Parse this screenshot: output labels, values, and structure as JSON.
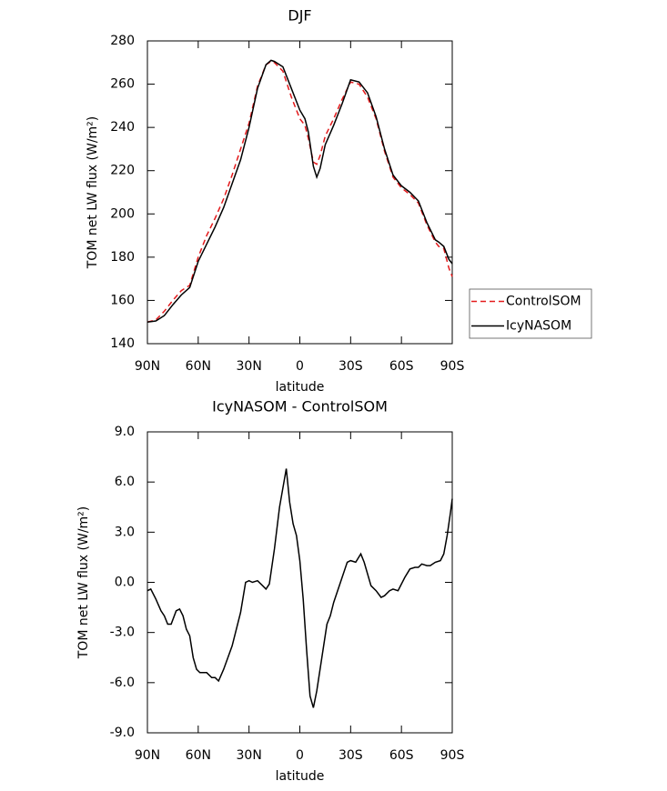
{
  "chart_data": [
    {
      "type": "line",
      "title": "DJF",
      "x_label": "latitude",
      "y_label": "TOM net LW flux (W/m²)",
      "xlim": [
        90,
        -90
      ],
      "xticks": [
        {
          "value": 90,
          "label": "90N"
        },
        {
          "value": 60,
          "label": "60N"
        },
        {
          "value": 30,
          "label": "30N"
        },
        {
          "value": 0,
          "label": "0"
        },
        {
          "value": -30,
          "label": "30S"
        },
        {
          "value": -60,
          "label": "60S"
        },
        {
          "value": -90,
          "label": "90S"
        }
      ],
      "ylim": [
        140,
        280
      ],
      "yticks": [
        140,
        160,
        180,
        200,
        220,
        240,
        260,
        280
      ],
      "legend": "right",
      "x": [
        90,
        85,
        80,
        75,
        70,
        65,
        60,
        55,
        50,
        45,
        40,
        35,
        30,
        25,
        20,
        17,
        15,
        10,
        5,
        0,
        -3,
        -5,
        -8,
        -10,
        -12,
        -15,
        -20,
        -25,
        -30,
        -35,
        -40,
        -45,
        -50,
        -55,
        -60,
        -65,
        -70,
        -75,
        -80,
        -82,
        -85,
        -88,
        -90
      ],
      "series": [
        {
          "name": "ControlSOM",
          "color": "#e41a1c",
          "dashed": true,
          "values": [
            150,
            151,
            155,
            160,
            164.5,
            167,
            180,
            190,
            198,
            207,
            218,
            230,
            242,
            259,
            269,
            270.5,
            270,
            266,
            254,
            244,
            241,
            235,
            224,
            223,
            227,
            236,
            244,
            253,
            261,
            260,
            254,
            244,
            229,
            217,
            212,
            209,
            205,
            195,
            187,
            185,
            184,
            175,
            171
          ]
        },
        {
          "name": "IcyNASOM",
          "color": "#000000",
          "dashed": false,
          "values": [
            150,
            150.5,
            153,
            158,
            162.5,
            166,
            178,
            186,
            194,
            203,
            214,
            225,
            240,
            258,
            269,
            271,
            270.5,
            268,
            258,
            248,
            244,
            238,
            222,
            217,
            221,
            232,
            241,
            251,
            262,
            261,
            256,
            245,
            230,
            218,
            213,
            210,
            206,
            196,
            188,
            187,
            185,
            179,
            177
          ]
        }
      ]
    },
    {
      "type": "line",
      "title": "IcyNASOM - ControlSOM",
      "x_label": "latitude",
      "y_label": "TOM net LW flux (W/m²)",
      "xlim": [
        90,
        -90
      ],
      "xticks": [
        {
          "value": 90,
          "label": "90N"
        },
        {
          "value": 60,
          "label": "60N"
        },
        {
          "value": 30,
          "label": "30N"
        },
        {
          "value": 0,
          "label": "0"
        },
        {
          "value": -30,
          "label": "30S"
        },
        {
          "value": -60,
          "label": "60S"
        },
        {
          "value": -90,
          "label": "90S"
        }
      ],
      "ylim": [
        -9,
        9
      ],
      "yticks": [
        {
          "value": -9,
          "label": "-9.0"
        },
        {
          "value": -6,
          "label": "-6.0"
        },
        {
          "value": -3,
          "label": "-3.0"
        },
        {
          "value": 0,
          "label": "0.0"
        },
        {
          "value": 3,
          "label": "3.0"
        },
        {
          "value": 6,
          "label": "6.0"
        },
        {
          "value": 9,
          "label": "9.0"
        }
      ],
      "x": [
        90,
        88,
        85,
        82,
        80,
        78,
        76,
        73,
        71,
        69,
        67,
        65,
        63,
        61,
        59,
        55,
        52,
        50,
        48,
        45,
        40,
        35,
        32,
        30,
        28,
        25,
        22,
        20,
        18,
        15,
        12,
        8,
        6,
        4,
        2,
        0,
        -2,
        -4,
        -6,
        -8,
        -10,
        -13,
        -16,
        -18,
        -20,
        -25,
        -28,
        -30,
        -33,
        -36,
        -38,
        -42,
        -45,
        -48,
        -50,
        -53,
        -55,
        -58,
        -62,
        -65,
        -68,
        -70,
        -72,
        -75,
        -77,
        -80,
        -83,
        -85,
        -87,
        -89,
        -90
      ],
      "series": [
        {
          "color": "#000000",
          "dashed": false,
          "values": [
            -0.5,
            -0.4,
            -1.0,
            -1.7,
            -2.0,
            -2.5,
            -2.5,
            -1.7,
            -1.6,
            -2.0,
            -2.8,
            -3.2,
            -4.5,
            -5.2,
            -5.4,
            -5.4,
            -5.7,
            -5.7,
            -5.9,
            -5.2,
            -3.8,
            -1.8,
            0.0,
            0.1,
            0.0,
            0.1,
            -0.2,
            -0.4,
            -0.1,
            2.0,
            4.5,
            6.8,
            4.8,
            3.5,
            2.8,
            1.3,
            -1.0,
            -4.0,
            -6.8,
            -7.5,
            -6.5,
            -4.5,
            -2.5,
            -2.0,
            -1.2,
            0.3,
            1.2,
            1.3,
            1.2,
            1.7,
            1.2,
            -0.2,
            -0.5,
            -0.9,
            -0.8,
            -0.5,
            -0.4,
            -0.5,
            0.3,
            0.8,
            0.9,
            0.9,
            1.1,
            1.0,
            1.0,
            1.2,
            1.3,
            1.7,
            2.8,
            4.2,
            5.0
          ]
        }
      ]
    }
  ]
}
